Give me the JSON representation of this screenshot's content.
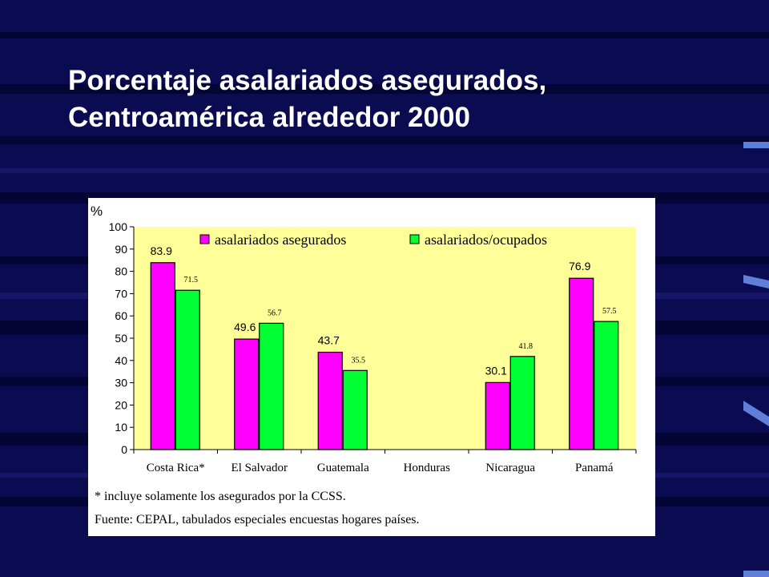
{
  "slide": {
    "title_line1": "Porcentaje asalariados asegurados,",
    "title_line2": "Centroamérica alrededor 2000",
    "colors": {
      "background": "#0b0b52",
      "title": "#ffffff"
    }
  },
  "chart_data": {
    "type": "bar",
    "title": "",
    "ylabel": "%",
    "xlabel": "",
    "ylim": [
      0,
      100
    ],
    "yticks": [
      0,
      10,
      20,
      30,
      40,
      50,
      60,
      70,
      80,
      90,
      100
    ],
    "categories": [
      "Costa Rica*",
      "El Salvador",
      "Guatemala",
      "Honduras",
      "Nicaragua",
      "Panamá"
    ],
    "series": [
      {
        "name": "asalariados asegurados",
        "color": "#ff00ff",
        "values": [
          83.9,
          49.6,
          43.7,
          null,
          30.1,
          76.9
        ],
        "labels": [
          "83.9",
          "49.6",
          "43.7",
          "",
          "30.1",
          "76.9"
        ]
      },
      {
        "name": "asalariados/ocupados",
        "color": "#00ff33",
        "values": [
          71.5,
          56.7,
          35.5,
          null,
          41.8,
          57.5
        ],
        "labels": [
          "71.5",
          "56.7",
          "35.5",
          "",
          "41.8",
          "57.5"
        ]
      }
    ],
    "plot_background": "#ffff99",
    "legend_position": "top",
    "grid": false,
    "notes": [
      "* incluye solamente los asegurados por la CCSS.",
      "Fuente: CEPAL, tabulados especiales encuestas hogares países."
    ]
  }
}
